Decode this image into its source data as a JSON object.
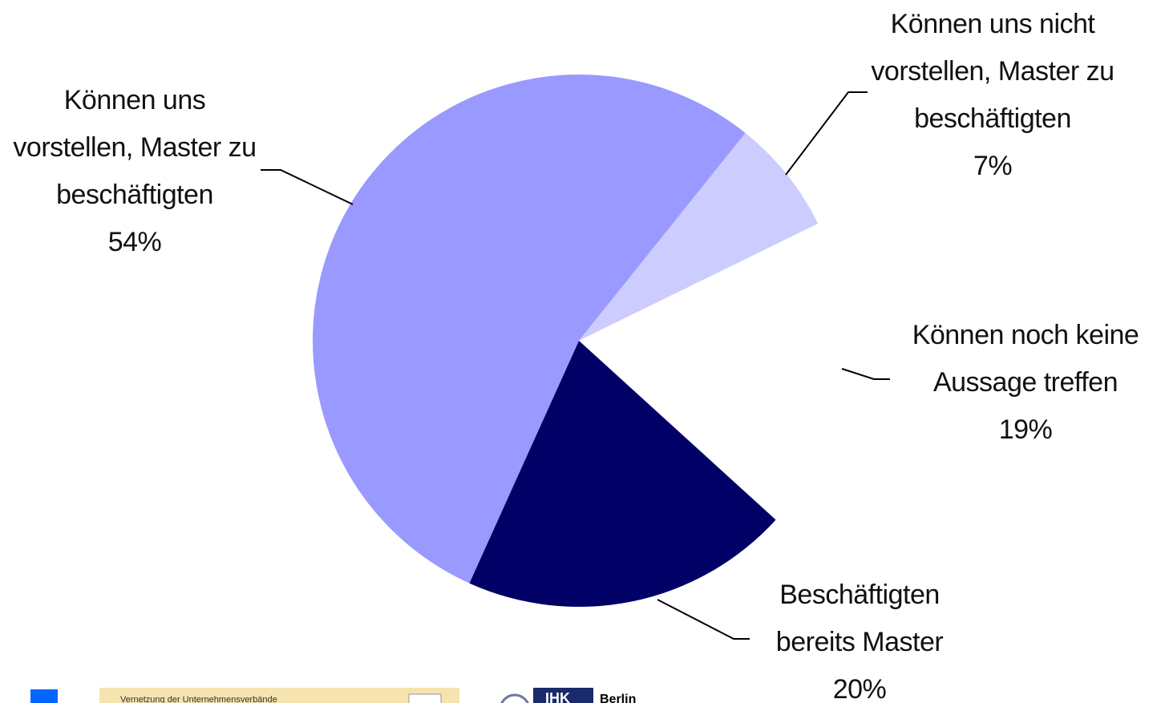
{
  "chart_data": {
    "type": "pie",
    "categories": [
      "Können uns nicht vorstellen, Master zu beschäftigten",
      "Können noch keine Aussage treffen",
      "Beschäftigten bereits Master",
      "Können uns vorstellen, Master zu beschäftigten"
    ],
    "values": [
      7,
      19,
      20,
      54
    ],
    "value_labels": [
      "7%",
      "19%",
      "20%",
      "54%"
    ],
    "colors": [
      "#ccccff",
      "#ffffff",
      "#000066",
      "#9999ff"
    ],
    "start_angle": 38.7
  },
  "footer": {
    "banner": "Vernetzung der Unternehmensverbände",
    "logo": "IHK",
    "logo_sub": "Berlin"
  }
}
